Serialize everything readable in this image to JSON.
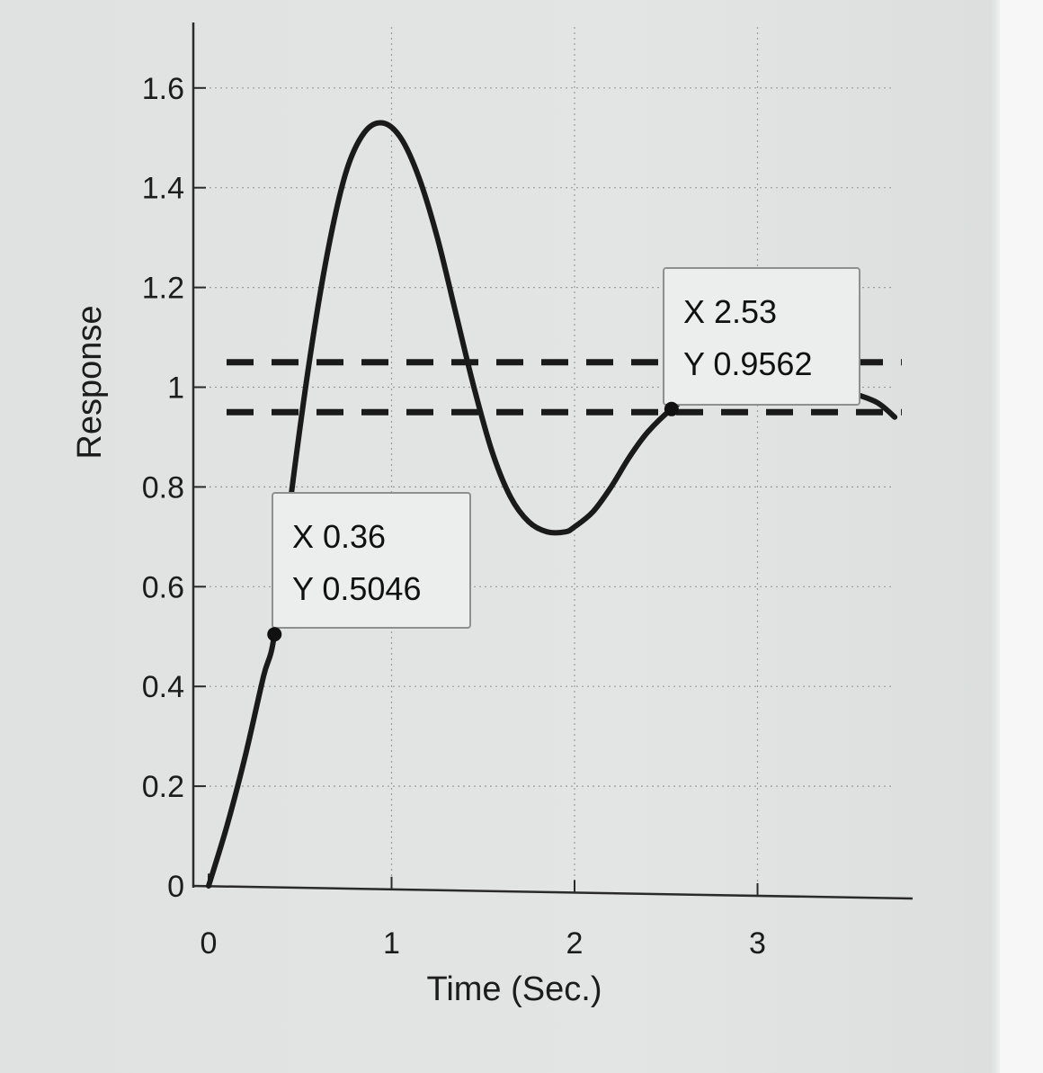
{
  "chart_data": {
    "type": "line",
    "title": "",
    "xlabel": "Time (Sec.)",
    "ylabel": "Response",
    "xlim": [
      0,
      3.8
    ],
    "ylim": [
      0,
      1.7
    ],
    "xticks": [
      0,
      1,
      2,
      3
    ],
    "xtick_labels": [
      "0",
      "1",
      "2",
      "3"
    ],
    "yticks": [
      0,
      0.2,
      0.4,
      0.6,
      0.8,
      1.0,
      1.2,
      1.4,
      1.6
    ],
    "ytick_labels": [
      "0",
      "0.2",
      "0.4",
      "0.6",
      "0.8",
      "1",
      "1.2",
      "1.4",
      "1.6"
    ],
    "grid": true,
    "series": [
      {
        "style": "solid",
        "color": "#1a1a1a",
        "x": [
          0,
          0.1,
          0.2,
          0.3,
          0.36,
          0.45,
          0.55,
          0.65,
          0.75,
          0.85,
          0.95,
          1.05,
          1.15,
          1.25,
          1.35,
          1.45,
          1.55,
          1.65,
          1.75,
          1.85,
          1.95,
          2.0,
          2.1,
          2.2,
          2.3,
          2.4,
          2.53,
          2.7,
          2.9,
          3.1,
          3.3,
          3.5,
          3.65,
          3.75
        ],
        "y": [
          0,
          0.12,
          0.26,
          0.42,
          0.5046,
          0.78,
          1.05,
          1.27,
          1.43,
          1.51,
          1.53,
          1.5,
          1.42,
          1.3,
          1.15,
          1.0,
          0.87,
          0.78,
          0.73,
          0.71,
          0.71,
          0.72,
          0.75,
          0.8,
          0.86,
          0.91,
          0.9562,
          1.0,
          1.03,
          1.03,
          1.01,
          0.99,
          0.97,
          0.94
        ]
      },
      {
        "style": "dashed",
        "color": "#1a1a1a",
        "x": [
          0,
          3.7
        ],
        "y": [
          1.05,
          1.05
        ]
      },
      {
        "style": "dashed",
        "color": "#1a1a1a",
        "x": [
          0,
          3.7
        ],
        "y": [
          0.95,
          0.95
        ]
      }
    ],
    "datatips": [
      {
        "x_label": "X",
        "x_value": "0.36",
        "y_label": "Y",
        "y_value": "0.5046",
        "x": 0.36,
        "y": 0.5046
      },
      {
        "x_label": "X",
        "x_value": "2.53",
        "y_label": "Y",
        "y_value": "0.9562",
        "x": 2.53,
        "y": 0.9562
      }
    ]
  }
}
